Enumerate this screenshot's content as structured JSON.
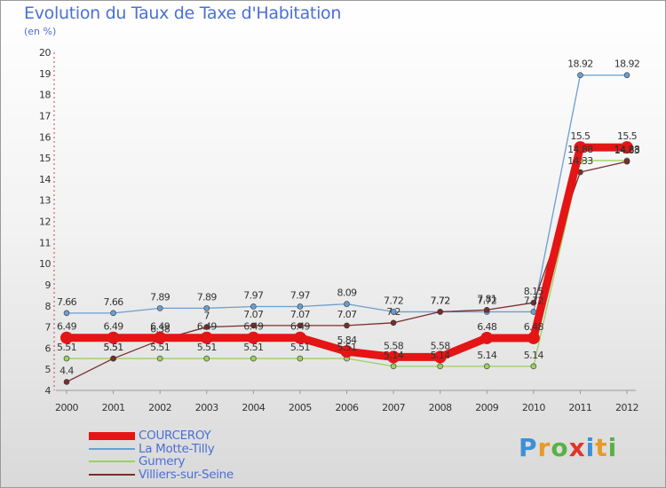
{
  "chart_data": {
    "type": "line",
    "title": "Evolution du Taux de Taxe d'Habitation",
    "subtitle": "(en %)",
    "xlabel": "",
    "ylabel": "",
    "ylim": [
      4,
      20
    ],
    "yticks": [
      "4",
      "5",
      "6",
      "7",
      "8",
      "9",
      "10",
      "11",
      "12",
      "13",
      "14",
      "15",
      "16",
      "17",
      "18",
      "19",
      "20"
    ],
    "categories": [
      "2000",
      "2001",
      "2002",
      "2003",
      "2004",
      "2005",
      "2006",
      "2007",
      "2008",
      "2009",
      "2010",
      "2011",
      "2012"
    ],
    "series": [
      {
        "name": "La Motte-Tilly",
        "color": "#6a9fd0",
        "values": [
          7.66,
          7.66,
          7.89,
          7.89,
          7.97,
          7.97,
          8.09,
          7.72,
          7.72,
          7.72,
          7.72,
          18.92,
          18.92
        ],
        "labels": [
          "7.66",
          "7.66",
          "7.89",
          "7.89",
          "7.97",
          "7.97",
          "8.09",
          "7.72",
          "7.72",
          "7.72",
          "7.72",
          "18.92",
          "18.92"
        ]
      },
      {
        "name": "Gumery",
        "color": "#99d160",
        "values": [
          5.51,
          5.51,
          5.51,
          5.51,
          5.51,
          5.51,
          5.51,
          5.14,
          5.14,
          5.14,
          5.14,
          14.88,
          14.88
        ],
        "labels": [
          "5.51",
          "5.51",
          "5.51",
          "5.51",
          "5.51",
          "5.51",
          "5.51",
          "5.14",
          "5.14",
          "5.14",
          "5.14",
          "14.88",
          "14.88"
        ]
      },
      {
        "name": "Villiers-sur-Seine",
        "color": "#7a2d2d",
        "values": [
          4.4,
          5.51,
          6.38,
          7,
          7.07,
          7.07,
          7.07,
          7.2,
          7.72,
          7.81,
          8.15,
          14.33,
          14.83
        ],
        "labels": [
          "4.4",
          "5.51",
          "6.38",
          "7",
          "7.07",
          "7.07",
          "7.07",
          "7.2",
          "7.72",
          "7.81",
          "8.15",
          "14.33",
          "14.83"
        ]
      },
      {
        "name": "COURCEROY",
        "color": "#e51515",
        "values": [
          6.49,
          6.49,
          6.49,
          6.49,
          6.49,
          6.49,
          5.84,
          5.58,
          5.58,
          6.48,
          6.48,
          15.5,
          15.5
        ],
        "labels": [
          "6.49",
          "6.49",
          "6.49",
          "6.49",
          "6.49",
          "6.49",
          "5.84",
          "5.58",
          "5.58",
          "6.48",
          "6.48",
          "15.5",
          "15.5"
        ]
      }
    ],
    "legend": [
      "COURCEROY",
      "La Motte-Tilly",
      "Gumery",
      "Villiers-sur-Seine"
    ],
    "legend_colors": [
      "#e51515",
      "#6a9fd0",
      "#99d160",
      "#7a2d2d"
    ],
    "legend_placement": "bottom-left"
  },
  "logo": {
    "letters": [
      "P",
      "r",
      "o",
      "x",
      "i",
      "t",
      "i"
    ]
  }
}
